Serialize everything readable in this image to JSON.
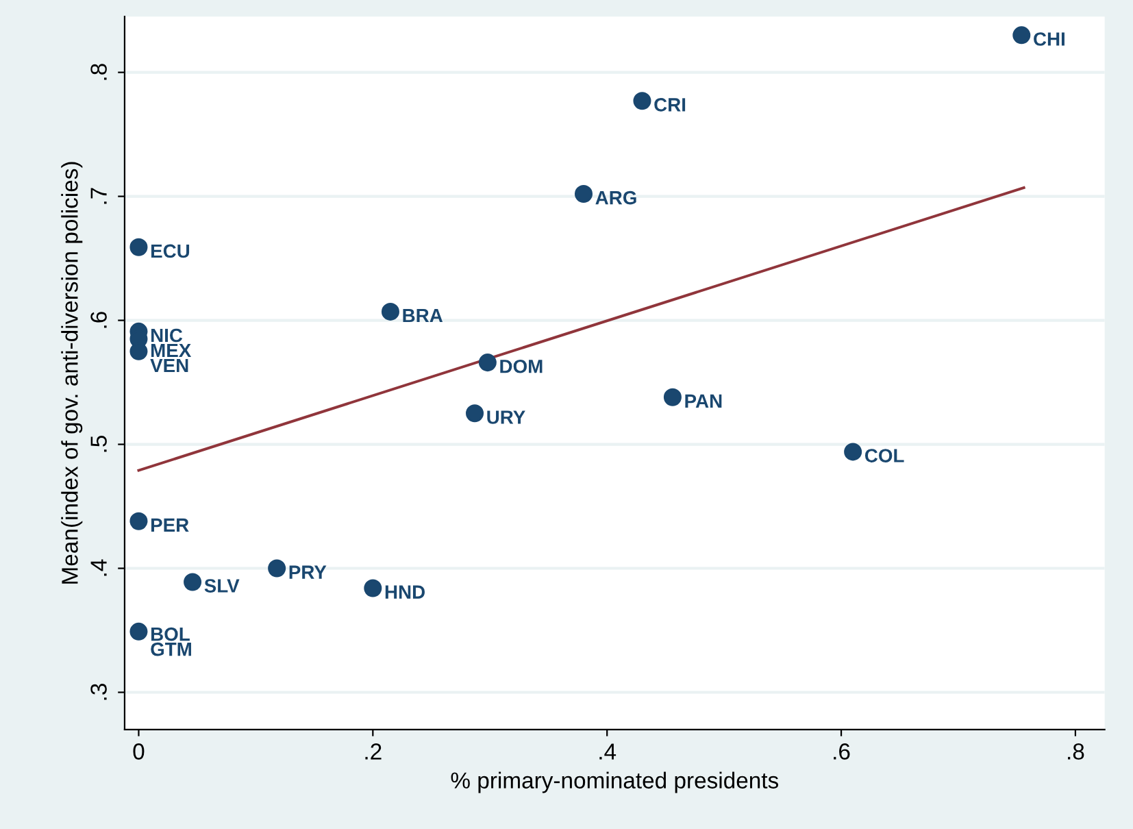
{
  "chart_data": {
    "type": "scatter",
    "xlabel": "% primary-nominated presidents",
    "ylabel": "Mean(index of gov. anti-diversion policies)",
    "xlim": [
      -0.012,
      0.825
    ],
    "ylim": [
      0.27,
      0.845
    ],
    "xticks": [
      {
        "value": 0,
        "label": "0"
      },
      {
        "value": 0.2,
        "label": ".2"
      },
      {
        "value": 0.4,
        "label": ".4"
      },
      {
        "value": 0.6,
        "label": ".6"
      },
      {
        "value": 0.8,
        "label": ".8"
      }
    ],
    "yticks": [
      {
        "value": 0.3,
        "label": ".3"
      },
      {
        "value": 0.4,
        "label": ".4"
      },
      {
        "value": 0.5,
        "label": ".5"
      },
      {
        "value": 0.6,
        "label": ".6"
      },
      {
        "value": 0.7,
        "label": ".7"
      },
      {
        "value": 0.8,
        "label": ".8"
      }
    ],
    "grid": "y",
    "legend": false,
    "series": [
      {
        "marker": "circle",
        "color": "#1a476f",
        "x": [
          0.754,
          0.43,
          0.38,
          0,
          0.215,
          0,
          0,
          0,
          0.298,
          0.287,
          0.456,
          0.61,
          0,
          0.118,
          0.046,
          0.2,
          null,
          0
        ],
        "values": [
          0.83,
          0.777,
          0.702,
          0.659,
          0.607,
          0.591,
          0.585,
          0.575,
          0.566,
          0.525,
          0.538,
          0.494,
          0.438,
          0.4,
          0.389,
          0.384,
          null,
          0.349
        ]
      },
      {
        "type": "line",
        "marker": "none",
        "color": "#90353b",
        "x": [
          0,
          0.756
        ],
        "values": [
          0.479,
          0.707
        ]
      }
    ],
    "annotations": [
      {
        "text": "CHI",
        "x": 0.754,
        "y": 0.83
      },
      {
        "text": "CRI",
        "x": 0.43,
        "y": 0.777
      },
      {
        "text": "ARG",
        "x": 0.38,
        "y": 0.702
      },
      {
        "text": "ECU",
        "x": 0,
        "y": 0.659
      },
      {
        "text": "BRA",
        "x": 0.215,
        "y": 0.607
      },
      {
        "text": "NIC",
        "x": 0,
        "y": 0.591
      },
      {
        "text": "MEX",
        "x": 0,
        "y": 0.585
      },
      {
        "text": "VEN",
        "x": 0,
        "y": 0.575
      },
      {
        "text": "DOM",
        "x": 0.298,
        "y": 0.566
      },
      {
        "text": "URY",
        "x": 0.287,
        "y": 0.525
      },
      {
        "text": "PAN",
        "x": 0.456,
        "y": 0.538
      },
      {
        "text": "COL",
        "x": 0.61,
        "y": 0.494
      },
      {
        "text": "PER",
        "x": 0,
        "y": 0.438
      },
      {
        "text": "PRY",
        "x": 0.118,
        "y": 0.4
      },
      {
        "text": "SLV",
        "x": 0.046,
        "y": 0.389
      },
      {
        "text": "HND",
        "x": 0.2,
        "y": 0.384
      },
      {
        "text": "BOL",
        "x": 0,
        "y": 0.35
      },
      {
        "text": "GTM",
        "x": 0,
        "y": 0.349
      }
    ]
  }
}
